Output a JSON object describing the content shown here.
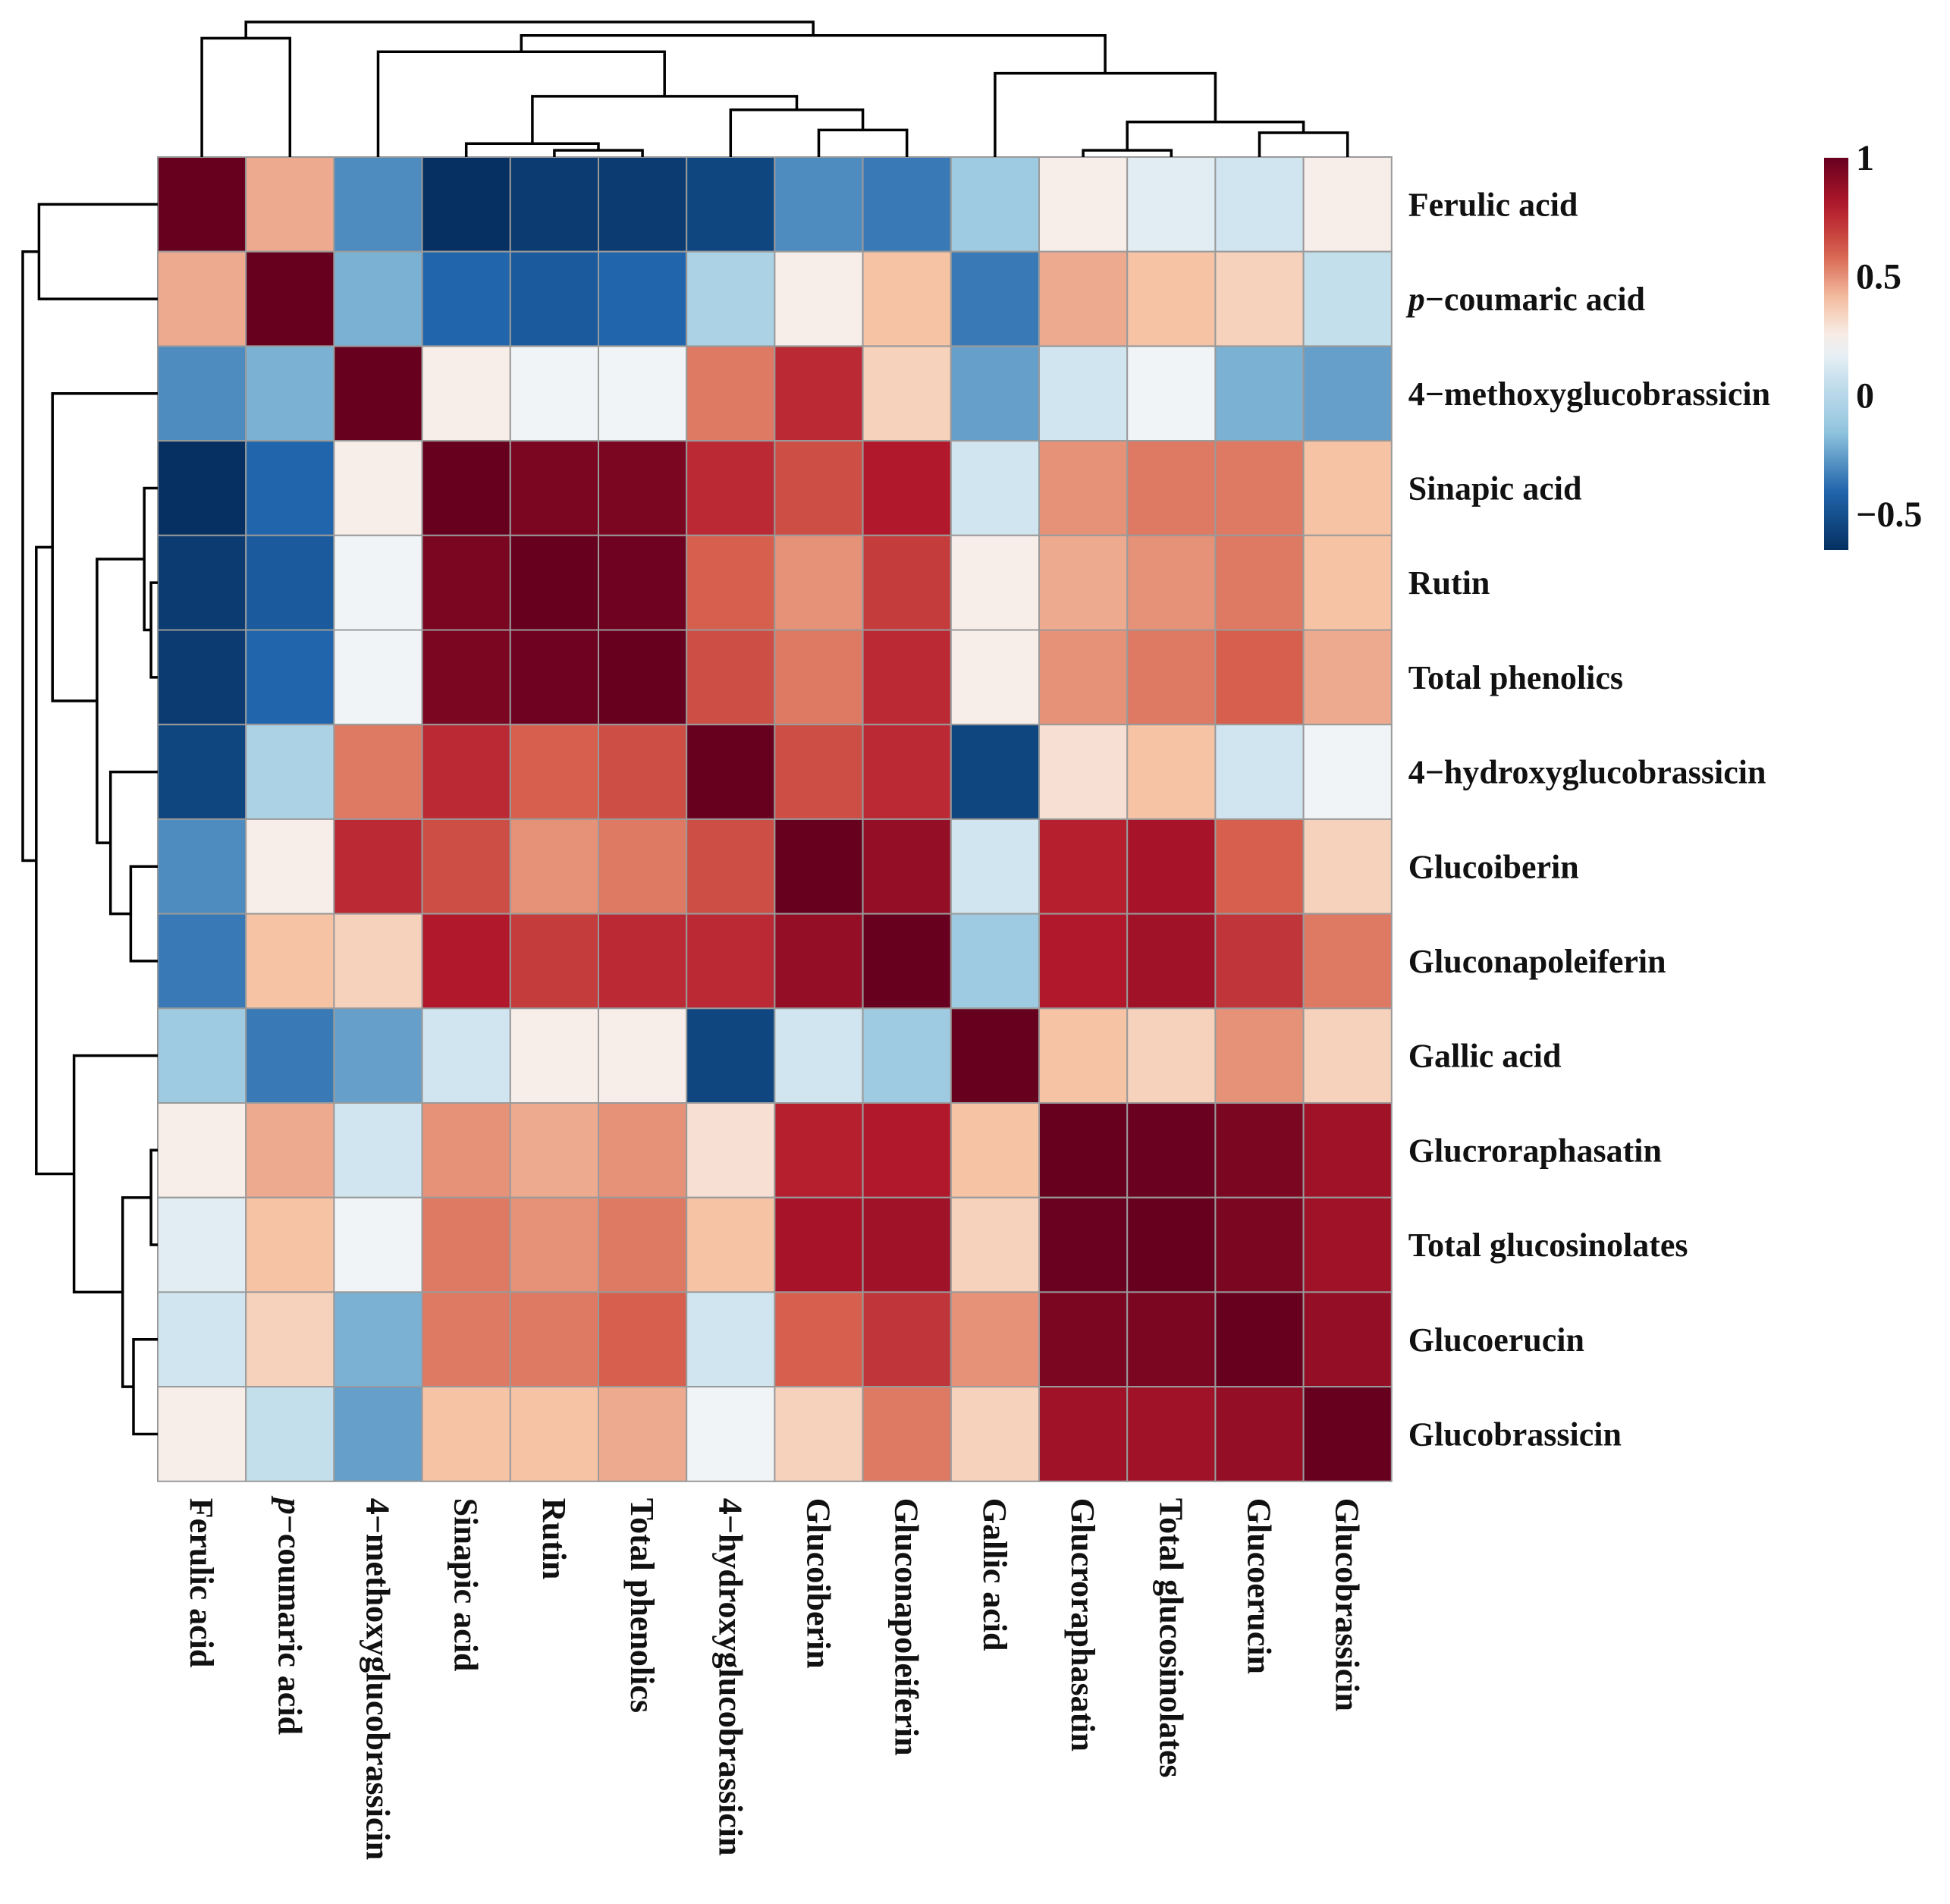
{
  "chart_data": {
    "type": "heatmap",
    "title": "",
    "labels": [
      "Ferulic acid",
      "p−coumaric acid",
      "4−methoxyglucobrassicin",
      "Sinapic acid",
      "Rutin",
      "Total phenolics",
      "4−hydroxyglucobrassicin",
      "Glucoiberin",
      "Gluconapoleiferin",
      "Gallic acid",
      "Glucroraphasatin",
      "Total glucosinolates",
      "Glucoerucin",
      "Glucobrassicin"
    ],
    "italic_prefix": [
      "",
      "p",
      "",
      "",
      "",
      "",
      "",
      "",
      "",
      "",
      "",
      "",
      "",
      ""
    ],
    "matrix": [
      [
        1.0,
        0.45,
        -0.3,
        -0.65,
        -0.6,
        -0.6,
        -0.55,
        -0.3,
        -0.35,
        -0.1,
        0.25,
        0.15,
        0.1,
        0.25
      ],
      [
        0.45,
        1.0,
        -0.2,
        -0.4,
        -0.45,
        -0.4,
        -0.05,
        0.25,
        0.4,
        -0.35,
        0.45,
        0.4,
        0.35,
        0.05
      ],
      [
        -0.3,
        -0.2,
        1.0,
        0.25,
        0.2,
        0.2,
        0.55,
        0.75,
        0.35,
        -0.25,
        0.1,
        0.2,
        -0.2,
        -0.25
      ],
      [
        -0.65,
        -0.4,
        0.25,
        1.0,
        0.95,
        0.95,
        0.75,
        0.65,
        0.8,
        0.1,
        0.5,
        0.55,
        0.55,
        0.4
      ],
      [
        -0.6,
        -0.45,
        0.2,
        0.95,
        1.0,
        0.98,
        0.6,
        0.5,
        0.7,
        0.25,
        0.45,
        0.5,
        0.55,
        0.4
      ],
      [
        -0.6,
        -0.4,
        0.2,
        0.95,
        0.98,
        1.0,
        0.65,
        0.55,
        0.75,
        0.25,
        0.5,
        0.55,
        0.6,
        0.45
      ],
      [
        -0.55,
        -0.05,
        0.55,
        0.75,
        0.6,
        0.65,
        1.0,
        0.65,
        0.75,
        -0.55,
        0.3,
        0.4,
        0.1,
        0.2
      ],
      [
        -0.3,
        0.25,
        0.75,
        0.65,
        0.5,
        0.55,
        0.65,
        1.0,
        0.88,
        0.1,
        0.78,
        0.83,
        0.6,
        0.35
      ],
      [
        -0.35,
        0.4,
        0.35,
        0.8,
        0.7,
        0.75,
        0.75,
        0.88,
        1.0,
        -0.1,
        0.8,
        0.85,
        0.72,
        0.55
      ],
      [
        -0.1,
        -0.35,
        -0.25,
        0.1,
        0.25,
        0.25,
        -0.55,
        0.1,
        -0.1,
        1.0,
        0.4,
        0.35,
        0.5,
        0.35
      ],
      [
        0.25,
        0.45,
        0.1,
        0.5,
        0.45,
        0.5,
        0.3,
        0.78,
        0.8,
        0.4,
        1.0,
        0.99,
        0.95,
        0.85
      ],
      [
        0.15,
        0.4,
        0.2,
        0.55,
        0.5,
        0.55,
        0.4,
        0.83,
        0.85,
        0.35,
        0.99,
        1.0,
        0.95,
        0.85
      ],
      [
        0.1,
        0.35,
        -0.2,
        0.55,
        0.55,
        0.6,
        0.1,
        0.6,
        0.72,
        0.5,
        0.95,
        0.95,
        1.0,
        0.88
      ],
      [
        0.25,
        0.05,
        -0.25,
        0.4,
        0.4,
        0.45,
        0.2,
        0.35,
        0.55,
        0.35,
        0.85,
        0.85,
        0.88,
        1.0
      ]
    ],
    "color_scale": {
      "min": -0.65,
      "max": 1,
      "ticks": [
        1,
        0.5,
        0,
        -0.5
      ],
      "tick_labels": [
        "1",
        "0.5",
        "0",
        "−0.5"
      ],
      "low_color": "#053061",
      "mid_color": "#f7f7f7",
      "high_color": "#67001f"
    },
    "dendrogram": "hierarchical clustering on rows and columns (same order)",
    "legend": "right"
  }
}
